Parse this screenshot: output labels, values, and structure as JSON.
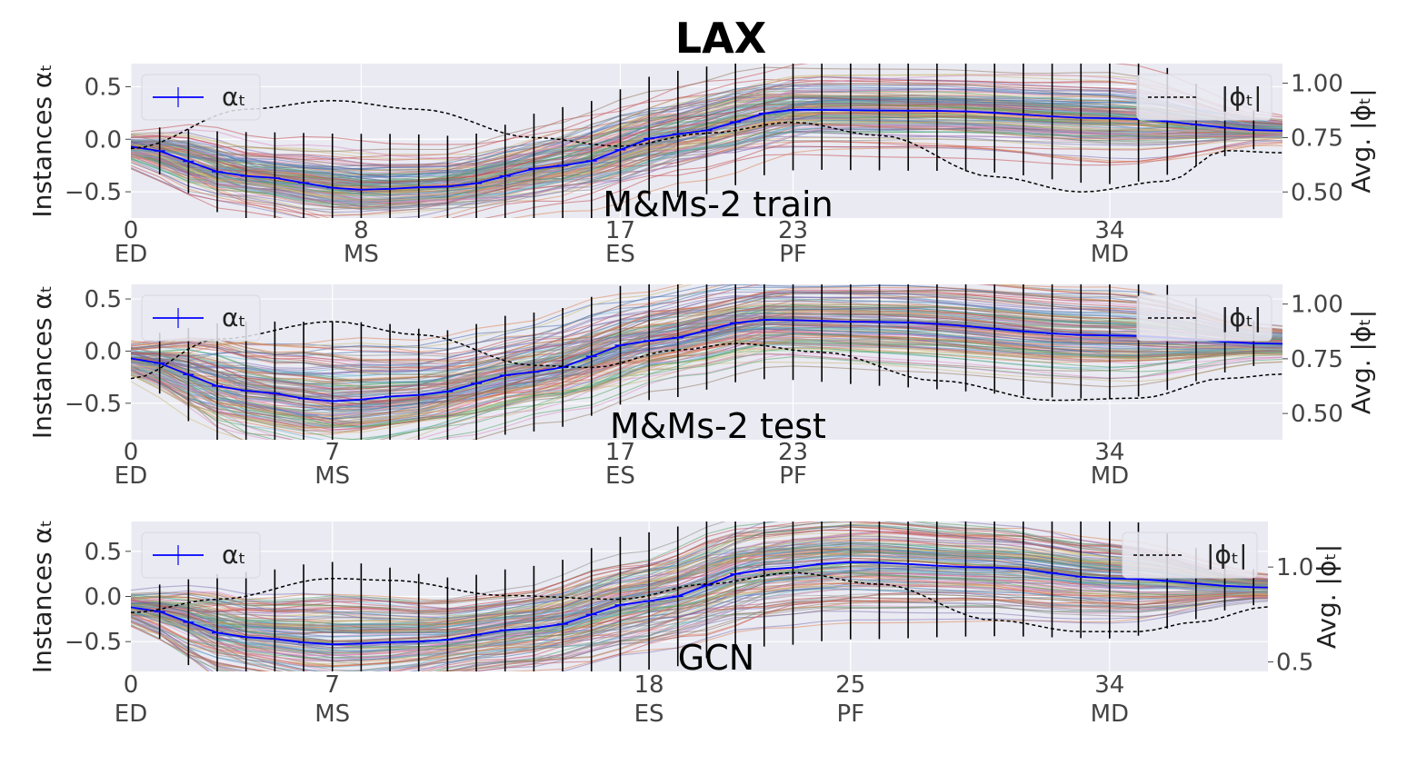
{
  "figure": {
    "title": "LAX"
  },
  "legend_labels": {
    "alpha": "αₜ",
    "phi": "|ϕₜ|"
  },
  "y_label_left": "Instances αₜ",
  "y_label_right": "Avg. |ϕₜ|",
  "colors": {
    "background": "#eaeaf2",
    "grid": "#ffffff",
    "mean_line": "#0000ff",
    "phi_line": "#000000",
    "errorbar": "#000000",
    "instance_palette": [
      "#4c72b0",
      "#dd8452",
      "#55a868",
      "#c44e52",
      "#8172b3",
      "#937860",
      "#da8bc3",
      "#8c8c8c",
      "#ccb974",
      "#64b5cd"
    ]
  },
  "chart_data": [
    {
      "type": "line",
      "panel_label": "M&Ms-2 train",
      "n_frames": 40,
      "xlim": [
        0,
        40
      ],
      "ylim_left": [
        -0.75,
        0.72
      ],
      "ylim_right": [
        0.38,
        1.09
      ],
      "y_ticks_left": [
        -0.5,
        0.0,
        0.5
      ],
      "y_tick_labels_left": [
        "−0.5",
        "0.0",
        "0.5"
      ],
      "y_ticks_right": [
        0.5,
        0.75,
        1.0
      ],
      "y_tick_labels_right": [
        "0.50",
        "0.75",
        "1.00"
      ],
      "x_ticks": [
        0,
        8,
        17,
        23,
        34
      ],
      "x_tick_labels": [
        "0",
        "8",
        "17",
        "23",
        "34"
      ],
      "phase_labels": [
        "ED",
        "MS",
        "ES",
        "PF",
        "MD"
      ],
      "legend_alpha_position": "upper left",
      "legend_phi_position": "upper right",
      "alpha_mean_knots": [
        [
          0,
          -0.07
        ],
        [
          4,
          -0.35
        ],
        [
          8,
          -0.48
        ],
        [
          11,
          -0.45
        ],
        [
          15,
          -0.25
        ],
        [
          19,
          0.05
        ],
        [
          23,
          0.28
        ],
        [
          28,
          0.27
        ],
        [
          34,
          0.2
        ],
        [
          40,
          0.08
        ]
      ],
      "alpha_sd_knots": [
        [
          0,
          0.1
        ],
        [
          4,
          0.22
        ],
        [
          8,
          0.28
        ],
        [
          12,
          0.25
        ],
        [
          16,
          0.3
        ],
        [
          20,
          0.32
        ],
        [
          24,
          0.3
        ],
        [
          30,
          0.3
        ],
        [
          34,
          0.33
        ],
        [
          40,
          0.08
        ]
      ],
      "phi_knots": [
        [
          0,
          0.7
        ],
        [
          4,
          0.88
        ],
        [
          7,
          0.92
        ],
        [
          10,
          0.88
        ],
        [
          14,
          0.75
        ],
        [
          17,
          0.71
        ],
        [
          20,
          0.77
        ],
        [
          23,
          0.82
        ],
        [
          26,
          0.76
        ],
        [
          30,
          0.57
        ],
        [
          33,
          0.5
        ],
        [
          36,
          0.55
        ],
        [
          38,
          0.69
        ],
        [
          40,
          0.68
        ]
      ]
    },
    {
      "type": "line",
      "panel_label": "M&Ms-2 test",
      "n_frames": 40,
      "xlim": [
        0,
        40
      ],
      "ylim_left": [
        -0.85,
        0.64
      ],
      "ylim_right": [
        0.38,
        1.09
      ],
      "y_ticks_left": [
        -0.5,
        0.0,
        0.5
      ],
      "y_tick_labels_left": [
        "−0.5",
        "0.0",
        "0.5"
      ],
      "y_ticks_right": [
        0.5,
        0.75,
        1.0
      ],
      "y_tick_labels_right": [
        "0.50",
        "0.75",
        "1.00"
      ],
      "x_ticks": [
        0,
        7,
        17,
        23,
        34
      ],
      "x_tick_labels": [
        "0",
        "7",
        "17",
        "23",
        "34"
      ],
      "phase_labels": [
        "ED",
        "MS",
        "ES",
        "PF",
        "MD"
      ],
      "legend_alpha_position": "upper left",
      "legend_phi_position": "upper right",
      "alpha_mean_knots": [
        [
          0,
          -0.07
        ],
        [
          4,
          -0.38
        ],
        [
          7,
          -0.48
        ],
        [
          10,
          -0.42
        ],
        [
          14,
          -0.2
        ],
        [
          18,
          0.1
        ],
        [
          22,
          0.3
        ],
        [
          26,
          0.28
        ],
        [
          34,
          0.15
        ],
        [
          40,
          0.07
        ]
      ],
      "alpha_sd_knots": [
        [
          0,
          0.12
        ],
        [
          4,
          0.35
        ],
        [
          7,
          0.4
        ],
        [
          12,
          0.3
        ],
        [
          18,
          0.3
        ],
        [
          22,
          0.3
        ],
        [
          28,
          0.33
        ],
        [
          34,
          0.32
        ],
        [
          40,
          0.1
        ]
      ],
      "phi_knots": [
        [
          0,
          0.66
        ],
        [
          3,
          0.84
        ],
        [
          7,
          0.92
        ],
        [
          10,
          0.86
        ],
        [
          14,
          0.72
        ],
        [
          16,
          0.71
        ],
        [
          19,
          0.79
        ],
        [
          21,
          0.82
        ],
        [
          24,
          0.78
        ],
        [
          28,
          0.65
        ],
        [
          32,
          0.56
        ],
        [
          35,
          0.57
        ],
        [
          38,
          0.66
        ],
        [
          40,
          0.68
        ]
      ]
    },
    {
      "type": "line",
      "panel_label": "GCN",
      "n_frames": 40,
      "xlim": [
        0,
        39.5
      ],
      "ylim_left": [
        -0.83,
        0.83
      ],
      "ylim_right": [
        0.45,
        1.24
      ],
      "y_ticks_left": [
        -0.5,
        0.0,
        0.5
      ],
      "y_tick_labels_left": [
        "−0.5",
        "0.0",
        "0.5"
      ],
      "y_ticks_right": [
        0.5,
        1.0
      ],
      "y_tick_labels_right": [
        "0.5",
        "1.0"
      ],
      "x_ticks": [
        0,
        7,
        18,
        25,
        34
      ],
      "x_tick_labels": [
        "0",
        "7",
        "18",
        "25",
        "34"
      ],
      "phase_labels": [
        "ED",
        "MS",
        "ES",
        "PF",
        "MD"
      ],
      "legend_alpha_position": "upper left",
      "legend_phi_position": "upper right",
      "alpha_mean_knots": [
        [
          0,
          -0.12
        ],
        [
          4,
          -0.45
        ],
        [
          7,
          -0.53
        ],
        [
          10,
          -0.5
        ],
        [
          14,
          -0.35
        ],
        [
          18,
          -0.05
        ],
        [
          22,
          0.3
        ],
        [
          25,
          0.38
        ],
        [
          30,
          0.32
        ],
        [
          34,
          0.2
        ],
        [
          39.5,
          0.1
        ]
      ],
      "alpha_sd_knots": [
        [
          0,
          0.12
        ],
        [
          4,
          0.38
        ],
        [
          7,
          0.48
        ],
        [
          12,
          0.35
        ],
        [
          18,
          0.4
        ],
        [
          22,
          0.45
        ],
        [
          25,
          0.45
        ],
        [
          30,
          0.4
        ],
        [
          34,
          0.35
        ],
        [
          39.5,
          0.1
        ]
      ],
      "phi_knots": [
        [
          0,
          0.76
        ],
        [
          3,
          0.83
        ],
        [
          7,
          0.94
        ],
        [
          9,
          0.93
        ],
        [
          13,
          0.85
        ],
        [
          17,
          0.83
        ],
        [
          20,
          0.91
        ],
        [
          23,
          0.97
        ],
        [
          26,
          0.91
        ],
        [
          30,
          0.72
        ],
        [
          33,
          0.66
        ],
        [
          35,
          0.66
        ],
        [
          37,
          0.71
        ],
        [
          39.5,
          0.79
        ]
      ]
    }
  ]
}
